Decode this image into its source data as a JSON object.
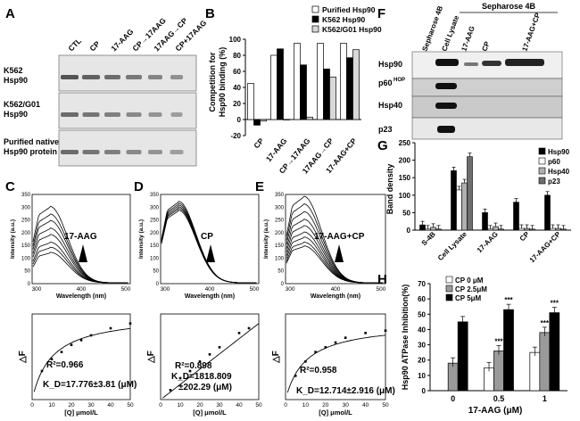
{
  "panels": {
    "A": "A",
    "B": "B",
    "C": "C",
    "D": "D",
    "E": "E",
    "F": "F",
    "G": "G",
    "H": "H"
  },
  "panelA": {
    "lanes": [
      "CTL",
      "CP",
      "17-AAG",
      "CP→17AAG",
      "17AAG→CP",
      "CP+17AAG"
    ],
    "rows": [
      {
        "l1": "K562",
        "l2": "Hsp90"
      },
      {
        "l1": "K562/G01",
        "l2": "Hsp90"
      },
      {
        "l1": "Purified native",
        "l2": "Hsp90 protein"
      }
    ]
  },
  "panelB": {
    "legend": [
      "Purified Hsp90",
      "K562 Hsp90",
      "K562/G01 Hsp90"
    ],
    "ylabel1": "Competition for",
    "ylabel2": "Hsp90 binding (%)",
    "ticks": [
      "100",
      "80",
      "60",
      "40",
      "20",
      "0",
      "-20"
    ],
    "cats": [
      "CP",
      "17-AAG",
      "CP→17AAG",
      "17AAG→CP",
      "17-AAG+CP"
    ],
    "colors": [
      "#ffffff",
      "#000000",
      "#d8d8d8"
    ]
  },
  "chart_data": [
    {
      "type": "bar",
      "panel": "B",
      "categories": [
        "CP",
        "17-AAG",
        "CP→17AAG",
        "17AAG→CP",
        "17-AAG+CP"
      ],
      "series": [
        {
          "name": "Purified Hsp90",
          "values": [
            45,
            80,
            95,
            95,
            95
          ]
        },
        {
          "name": "K562 Hsp90",
          "values": [
            -7,
            88,
            68,
            63,
            77
          ]
        },
        {
          "name": "K562/G01 Hsp90",
          "values": [
            -2,
            0,
            3,
            53,
            87
          ]
        }
      ],
      "ylabel": "Competition for Hsp90 binding (%)",
      "ylim": [
        -20,
        100
      ]
    },
    {
      "type": "line",
      "panel": "C",
      "annotation": "17-AAG",
      "xlabel": "Wavelength (nm)",
      "ylabel": "Intensity (a.u.)",
      "xticks": [
        "300",
        "400",
        "500"
      ],
      "yticks": [
        "0",
        "50",
        "100",
        "150",
        "200",
        "250",
        "300",
        "350"
      ],
      "peaks": [
        300,
        270,
        245,
        215,
        190,
        160,
        140,
        120
      ],
      "xlim": [
        290,
        510
      ],
      "ylim": [
        0,
        350
      ]
    },
    {
      "type": "line",
      "panel": "D",
      "annotation": "CP",
      "xlabel": "Wavelength (nm)",
      "ylabel": "Intensity (a.u.)",
      "xticks": [
        "300",
        "400",
        "500"
      ],
      "yticks": [
        "0",
        "50",
        "100",
        "150",
        "200",
        "250",
        "300",
        "350"
      ],
      "peaks": [
        320,
        312,
        305,
        298,
        292,
        285
      ],
      "xlim": [
        290,
        510
      ],
      "ylim": [
        0,
        350
      ]
    },
    {
      "type": "line",
      "panel": "E",
      "annotation": "17-AAG+CP",
      "xlabel": "Wavelength (nm)",
      "ylabel": "Intensity (a.u.)",
      "xticks": [
        "300",
        "400",
        "500"
      ],
      "yticks": [
        "0",
        "50",
        "100",
        "150",
        "200",
        "250",
        "300",
        "350"
      ],
      "peaks": [
        340,
        310,
        280,
        250,
        225,
        200,
        180,
        160,
        145
      ],
      "xlim": [
        290,
        510
      ],
      "ylim": [
        0,
        350
      ]
    },
    {
      "type": "scatter",
      "panel": "C-fit",
      "xlabel": "[Q] μmol/L",
      "ylabel": "△F",
      "x": [
        5,
        10,
        15,
        20,
        25,
        30,
        40,
        50
      ],
      "y": [
        60,
        85,
        100,
        115,
        125,
        135,
        150,
        160
      ],
      "xticks": [
        "0",
        "10",
        "20",
        "30",
        "40",
        "50"
      ],
      "r2": "R²=0.966",
      "kd": "K_D=17.776±3.81 (μM)"
    },
    {
      "type": "scatter",
      "panel": "D-fit",
      "xlabel": "[Q] μmol/L",
      "ylabel": "△F",
      "x": [
        5,
        10,
        15,
        20,
        25,
        30,
        40,
        45
      ],
      "y": [
        20,
        45,
        60,
        80,
        95,
        110,
        140,
        150
      ],
      "xticks": [
        "0",
        "10",
        "20",
        "30",
        "40",
        "50"
      ],
      "r2": "R²=0.898",
      "kd1": "K_D=1818.809",
      "kd2": "±202.29 (μM)"
    },
    {
      "type": "scatter",
      "panel": "E-fit",
      "xlabel": "[Q] μmol/L",
      "ylabel": "△F",
      "x": [
        5,
        10,
        15,
        20,
        25,
        30,
        40,
        50
      ],
      "y": [
        50,
        80,
        100,
        110,
        120,
        130,
        140,
        145
      ],
      "xticks": [
        "0",
        "10",
        "20",
        "30",
        "40",
        "50"
      ],
      "r2": "R²=0.958",
      "kd": "K_D=12.714±2.916 (μM)"
    },
    {
      "type": "bar",
      "panel": "G",
      "categories": [
        "S-4B",
        "Cell Lysate",
        "17-AAG",
        "CP",
        "17-AAG+CP"
      ],
      "series": [
        {
          "name": "Hsp90",
          "values": [
            15,
            170,
            50,
            80,
            100
          ]
        },
        {
          "name": "p60",
          "values": [
            3,
            115,
            3,
            5,
            5
          ]
        },
        {
          "name": "Hsp40",
          "values": [
            8,
            135,
            10,
            5,
            5
          ]
        },
        {
          "name": "p23",
          "values": [
            3,
            210,
            3,
            3,
            3
          ]
        }
      ],
      "ylabel": "Band density",
      "ylim": [
        0,
        250
      ],
      "yticks": [
        "0",
        "50",
        "100",
        "150",
        "200",
        "250"
      ]
    },
    {
      "type": "bar",
      "panel": "H",
      "categories": [
        "0",
        "0.5",
        "1"
      ],
      "series": [
        {
          "name": "CP 0 μM",
          "values": [
            0,
            15,
            25
          ]
        },
        {
          "name": "CP 2.5μM",
          "values": [
            18,
            26,
            38
          ]
        },
        {
          "name": "CP 5μM",
          "values": [
            45,
            53,
            51
          ]
        }
      ],
      "ylabel": "Hsp90 ATPase Inhibition(%)",
      "xlabel": "17-AAG (μM)",
      "ylim": [
        0,
        70
      ],
      "yticks": [
        "0",
        "10",
        "20",
        "30",
        "40",
        "50",
        "60",
        "70"
      ],
      "stars": "***"
    }
  ],
  "panelF": {
    "header": "Sepharose 4B",
    "lanes": [
      "Sepharose 4B",
      "Cell Lysate",
      "17-AAG",
      "CP",
      "17-AAG+CP"
    ],
    "rows": [
      "Hsp90",
      "p60",
      "p23"
    ],
    "row_hop_sup": "HOP",
    "row_hsp40": "Hsp40"
  },
  "panelG": {
    "legend": [
      "Hsp90",
      "p60",
      "Hsp40",
      "p23"
    ],
    "colors": [
      "#000000",
      "#ffffff",
      "#b0b0b0",
      "#6e6e6e"
    ]
  },
  "panelH": {
    "legend": [
      "CP 0 μM",
      "CP 2.5μM",
      "CP 5μM"
    ],
    "colors": [
      "#ffffff",
      "#9a9a9a",
      "#000000"
    ]
  }
}
